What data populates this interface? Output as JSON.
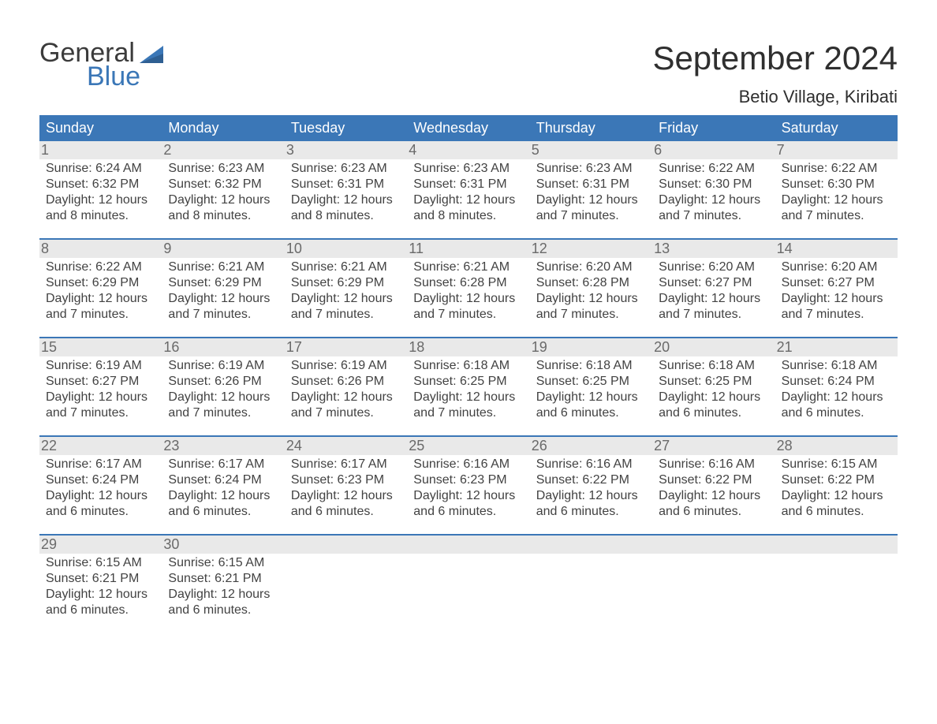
{
  "brand": {
    "top": "General",
    "bottom": "Blue"
  },
  "title": "September 2024",
  "location": "Betio Village, Kiribati",
  "colors": {
    "accent": "#3b77b7",
    "day_header_bg": "#e9e9e9",
    "cell_text": "#424242",
    "title_text": "#2f2f2f"
  },
  "days_of_week": [
    "Sunday",
    "Monday",
    "Tuesday",
    "Wednesday",
    "Thursday",
    "Friday",
    "Saturday"
  ],
  "start_offset": 0,
  "cells": [
    {
      "n": 1,
      "sr": "6:24 AM",
      "ss": "6:32 PM",
      "dl": "12 hours and 8 minutes."
    },
    {
      "n": 2,
      "sr": "6:23 AM",
      "ss": "6:32 PM",
      "dl": "12 hours and 8 minutes."
    },
    {
      "n": 3,
      "sr": "6:23 AM",
      "ss": "6:31 PM",
      "dl": "12 hours and 8 minutes."
    },
    {
      "n": 4,
      "sr": "6:23 AM",
      "ss": "6:31 PM",
      "dl": "12 hours and 8 minutes."
    },
    {
      "n": 5,
      "sr": "6:23 AM",
      "ss": "6:31 PM",
      "dl": "12 hours and 7 minutes."
    },
    {
      "n": 6,
      "sr": "6:22 AM",
      "ss": "6:30 PM",
      "dl": "12 hours and 7 minutes."
    },
    {
      "n": 7,
      "sr": "6:22 AM",
      "ss": "6:30 PM",
      "dl": "12 hours and 7 minutes."
    },
    {
      "n": 8,
      "sr": "6:22 AM",
      "ss": "6:29 PM",
      "dl": "12 hours and 7 minutes."
    },
    {
      "n": 9,
      "sr": "6:21 AM",
      "ss": "6:29 PM",
      "dl": "12 hours and 7 minutes."
    },
    {
      "n": 10,
      "sr": "6:21 AM",
      "ss": "6:29 PM",
      "dl": "12 hours and 7 minutes."
    },
    {
      "n": 11,
      "sr": "6:21 AM",
      "ss": "6:28 PM",
      "dl": "12 hours and 7 minutes."
    },
    {
      "n": 12,
      "sr": "6:20 AM",
      "ss": "6:28 PM",
      "dl": "12 hours and 7 minutes."
    },
    {
      "n": 13,
      "sr": "6:20 AM",
      "ss": "6:27 PM",
      "dl": "12 hours and 7 minutes."
    },
    {
      "n": 14,
      "sr": "6:20 AM",
      "ss": "6:27 PM",
      "dl": "12 hours and 7 minutes."
    },
    {
      "n": 15,
      "sr": "6:19 AM",
      "ss": "6:27 PM",
      "dl": "12 hours and 7 minutes."
    },
    {
      "n": 16,
      "sr": "6:19 AM",
      "ss": "6:26 PM",
      "dl": "12 hours and 7 minutes."
    },
    {
      "n": 17,
      "sr": "6:19 AM",
      "ss": "6:26 PM",
      "dl": "12 hours and 7 minutes."
    },
    {
      "n": 18,
      "sr": "6:18 AM",
      "ss": "6:25 PM",
      "dl": "12 hours and 7 minutes."
    },
    {
      "n": 19,
      "sr": "6:18 AM",
      "ss": "6:25 PM",
      "dl": "12 hours and 6 minutes."
    },
    {
      "n": 20,
      "sr": "6:18 AM",
      "ss": "6:25 PM",
      "dl": "12 hours and 6 minutes."
    },
    {
      "n": 21,
      "sr": "6:18 AM",
      "ss": "6:24 PM",
      "dl": "12 hours and 6 minutes."
    },
    {
      "n": 22,
      "sr": "6:17 AM",
      "ss": "6:24 PM",
      "dl": "12 hours and 6 minutes."
    },
    {
      "n": 23,
      "sr": "6:17 AM",
      "ss": "6:24 PM",
      "dl": "12 hours and 6 minutes."
    },
    {
      "n": 24,
      "sr": "6:17 AM",
      "ss": "6:23 PM",
      "dl": "12 hours and 6 minutes."
    },
    {
      "n": 25,
      "sr": "6:16 AM",
      "ss": "6:23 PM",
      "dl": "12 hours and 6 minutes."
    },
    {
      "n": 26,
      "sr": "6:16 AM",
      "ss": "6:22 PM",
      "dl": "12 hours and 6 minutes."
    },
    {
      "n": 27,
      "sr": "6:16 AM",
      "ss": "6:22 PM",
      "dl": "12 hours and 6 minutes."
    },
    {
      "n": 28,
      "sr": "6:15 AM",
      "ss": "6:22 PM",
      "dl": "12 hours and 6 minutes."
    },
    {
      "n": 29,
      "sr": "6:15 AM",
      "ss": "6:21 PM",
      "dl": "12 hours and 6 minutes."
    },
    {
      "n": 30,
      "sr": "6:15 AM",
      "ss": "6:21 PM",
      "dl": "12 hours and 6 minutes."
    }
  ],
  "labels": {
    "sunrise": "Sunrise:",
    "sunset": "Sunset:",
    "daylight": "Daylight:"
  }
}
